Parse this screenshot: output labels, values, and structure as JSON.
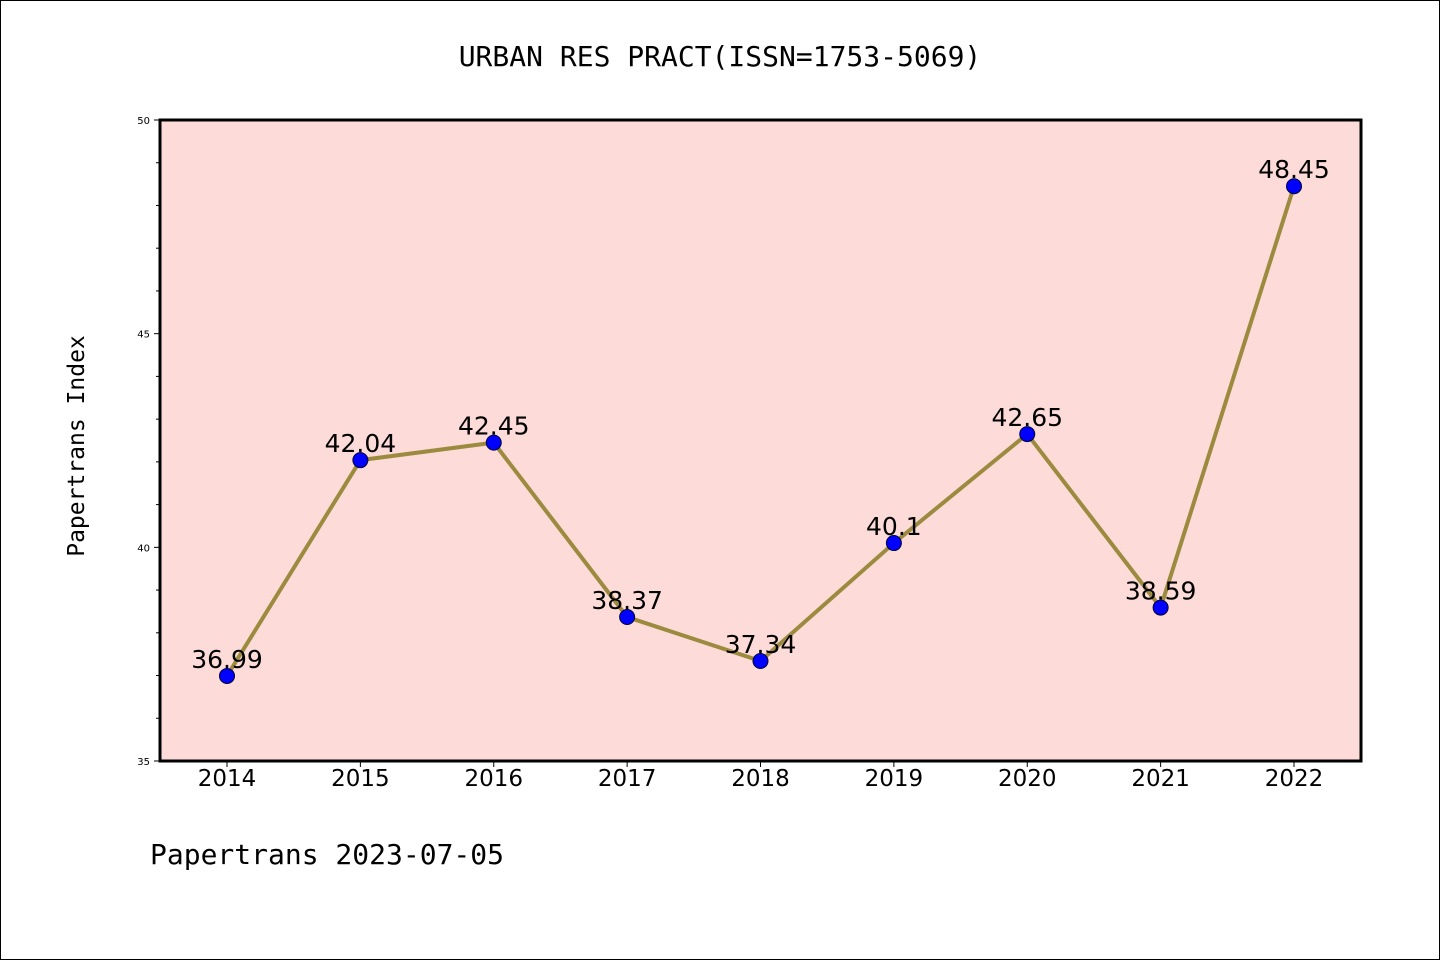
{
  "chart_data": {
    "type": "line",
    "title": "URBAN RES PRACT(ISSN=1753-5069)",
    "ylabel": "Papertrans Index",
    "xlabel": "",
    "footer": "Papertrans 2023-07-05",
    "categories": [
      "2014",
      "2015",
      "2016",
      "2017",
      "2018",
      "2019",
      "2020",
      "2021",
      "2022"
    ],
    "series": [
      {
        "values": [
          36.99,
          42.04,
          42.45,
          38.37,
          37.34,
          40.1,
          42.65,
          38.59,
          48.45
        ],
        "labels": [
          "36.99",
          "42.04",
          "42.45",
          "38.37",
          "37.34",
          "40.1",
          "42.65",
          "38.59",
          "48.45"
        ]
      }
    ],
    "ylim": [
      35,
      50
    ],
    "yticks": [
      "35",
      "40",
      "45",
      "50"
    ],
    "grid": false,
    "legend": "none",
    "colors": {
      "plot_background": "#fddbd8",
      "line": "#9c8b3f",
      "marker": "#0000ff",
      "axis": "#000000"
    }
  }
}
